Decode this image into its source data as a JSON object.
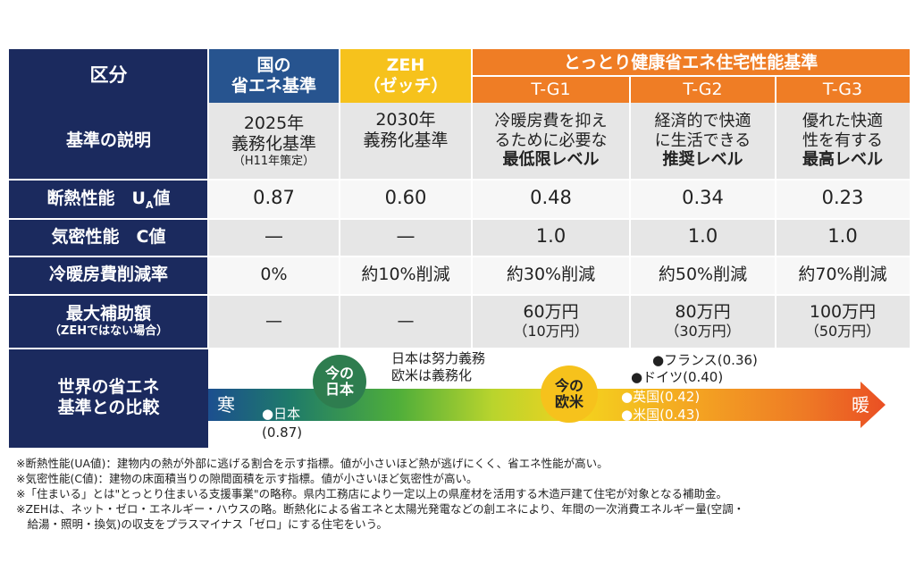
{
  "header": {
    "category": "区分",
    "national_line1": "国の",
    "national_line2": "省エネ基準",
    "zeh_line1": "ZEH",
    "zeh_line2": "（ゼッチ）",
    "tottori": "とっとり健康省エネ住宅性能基準",
    "tg1": "T-G1",
    "tg2": "T-G2",
    "tg3": "T-G3"
  },
  "rows": {
    "description": {
      "label": "基準の説明",
      "national_line1": "2025年",
      "national_line2": "義務化基準",
      "national_note": "（H11年策定）",
      "zeh_line1": "2030年",
      "zeh_line2": "義務化基準",
      "tg1_line1": "冷暖房費を抑え",
      "tg1_line2": "るために必要な",
      "tg1_line3": "最低限レベル",
      "tg2_line1": "経済的で快適",
      "tg2_line2": "に生活できる",
      "tg2_line3": "推奨レベル",
      "tg3_line1": "優れた快適",
      "tg3_line2": "性を有する",
      "tg3_line3": "最高レベル"
    },
    "insulation": {
      "label_main": "断熱性能　U",
      "label_sub": "A",
      "label_tail": "値",
      "values": [
        "0.87",
        "0.60",
        "0.48",
        "0.34",
        "0.23"
      ]
    },
    "airtight": {
      "label": "気密性能　C値",
      "values": [
        "—",
        "—",
        "1.0",
        "1.0",
        "1.0"
      ]
    },
    "reduction": {
      "label": "冷暖房費削減率",
      "values": [
        "0%",
        "約10%削減",
        "約30%削減",
        "約50%削減",
        "約70%削減"
      ]
    },
    "subsidy": {
      "label_line1": "最大補助額",
      "label_line2": "（ZEHではない場合）",
      "values": [
        "—",
        "—",
        "60万円",
        "80万円",
        "100万円"
      ],
      "subvalues": [
        "",
        "",
        "（10万円）",
        "（30万円）",
        "（50万円）"
      ]
    },
    "comparison": {
      "label_line1": "世界の省エネ",
      "label_line2": "基準との比較",
      "cold": "寒",
      "warm": "暖",
      "japan_point": "●日本",
      "japan_value": "(0.87)",
      "now_japan_line1": "今の",
      "now_japan_line2": "日本",
      "note_line1": "日本は努力義務",
      "note_line2": "欧米は義務化",
      "now_west_line1": "今の",
      "now_west_line2": "欧米",
      "france": "●フランス(0.36)",
      "germany": "●ドイツ(0.40)",
      "uk": "●英国(0.42)",
      "us": "●米国(0.43)"
    }
  },
  "notes": [
    "※断熱性能(UA値)：建物内の熱が外部に逃げる割合を示す指標。値が小さいほど熱が逃げにくく、省エネ性能が高い。",
    "※気密性能(C値)：建物の床面積当りの隙間面積を示す指標。値が小さいほど気密性が高い。",
    "※「住まいる」とは\"とっとり住まいる支援事業\"の略称。県内工務店により一定以上の県産材を活用する木造戸建て住宅が対象となる補助金。",
    "※ZEHは、ネット・ゼロ・エネルギー・ハウスの略。断熱化による省エネと太陽光発電などの創エネにより、年間の一次消費エネルギー量(空調・",
    "　給湯・照明・換気)の収支をプラスマイナス「ゼロ」にする住宅をいう。"
  ],
  "colors": {
    "navy": "#1b2a5e",
    "blue": "#27548f",
    "yellow": "#f6c21c",
    "orange": "#ef7d25",
    "green_badge": "#2e7d4f",
    "arrow_end": "#ea4f24"
  }
}
